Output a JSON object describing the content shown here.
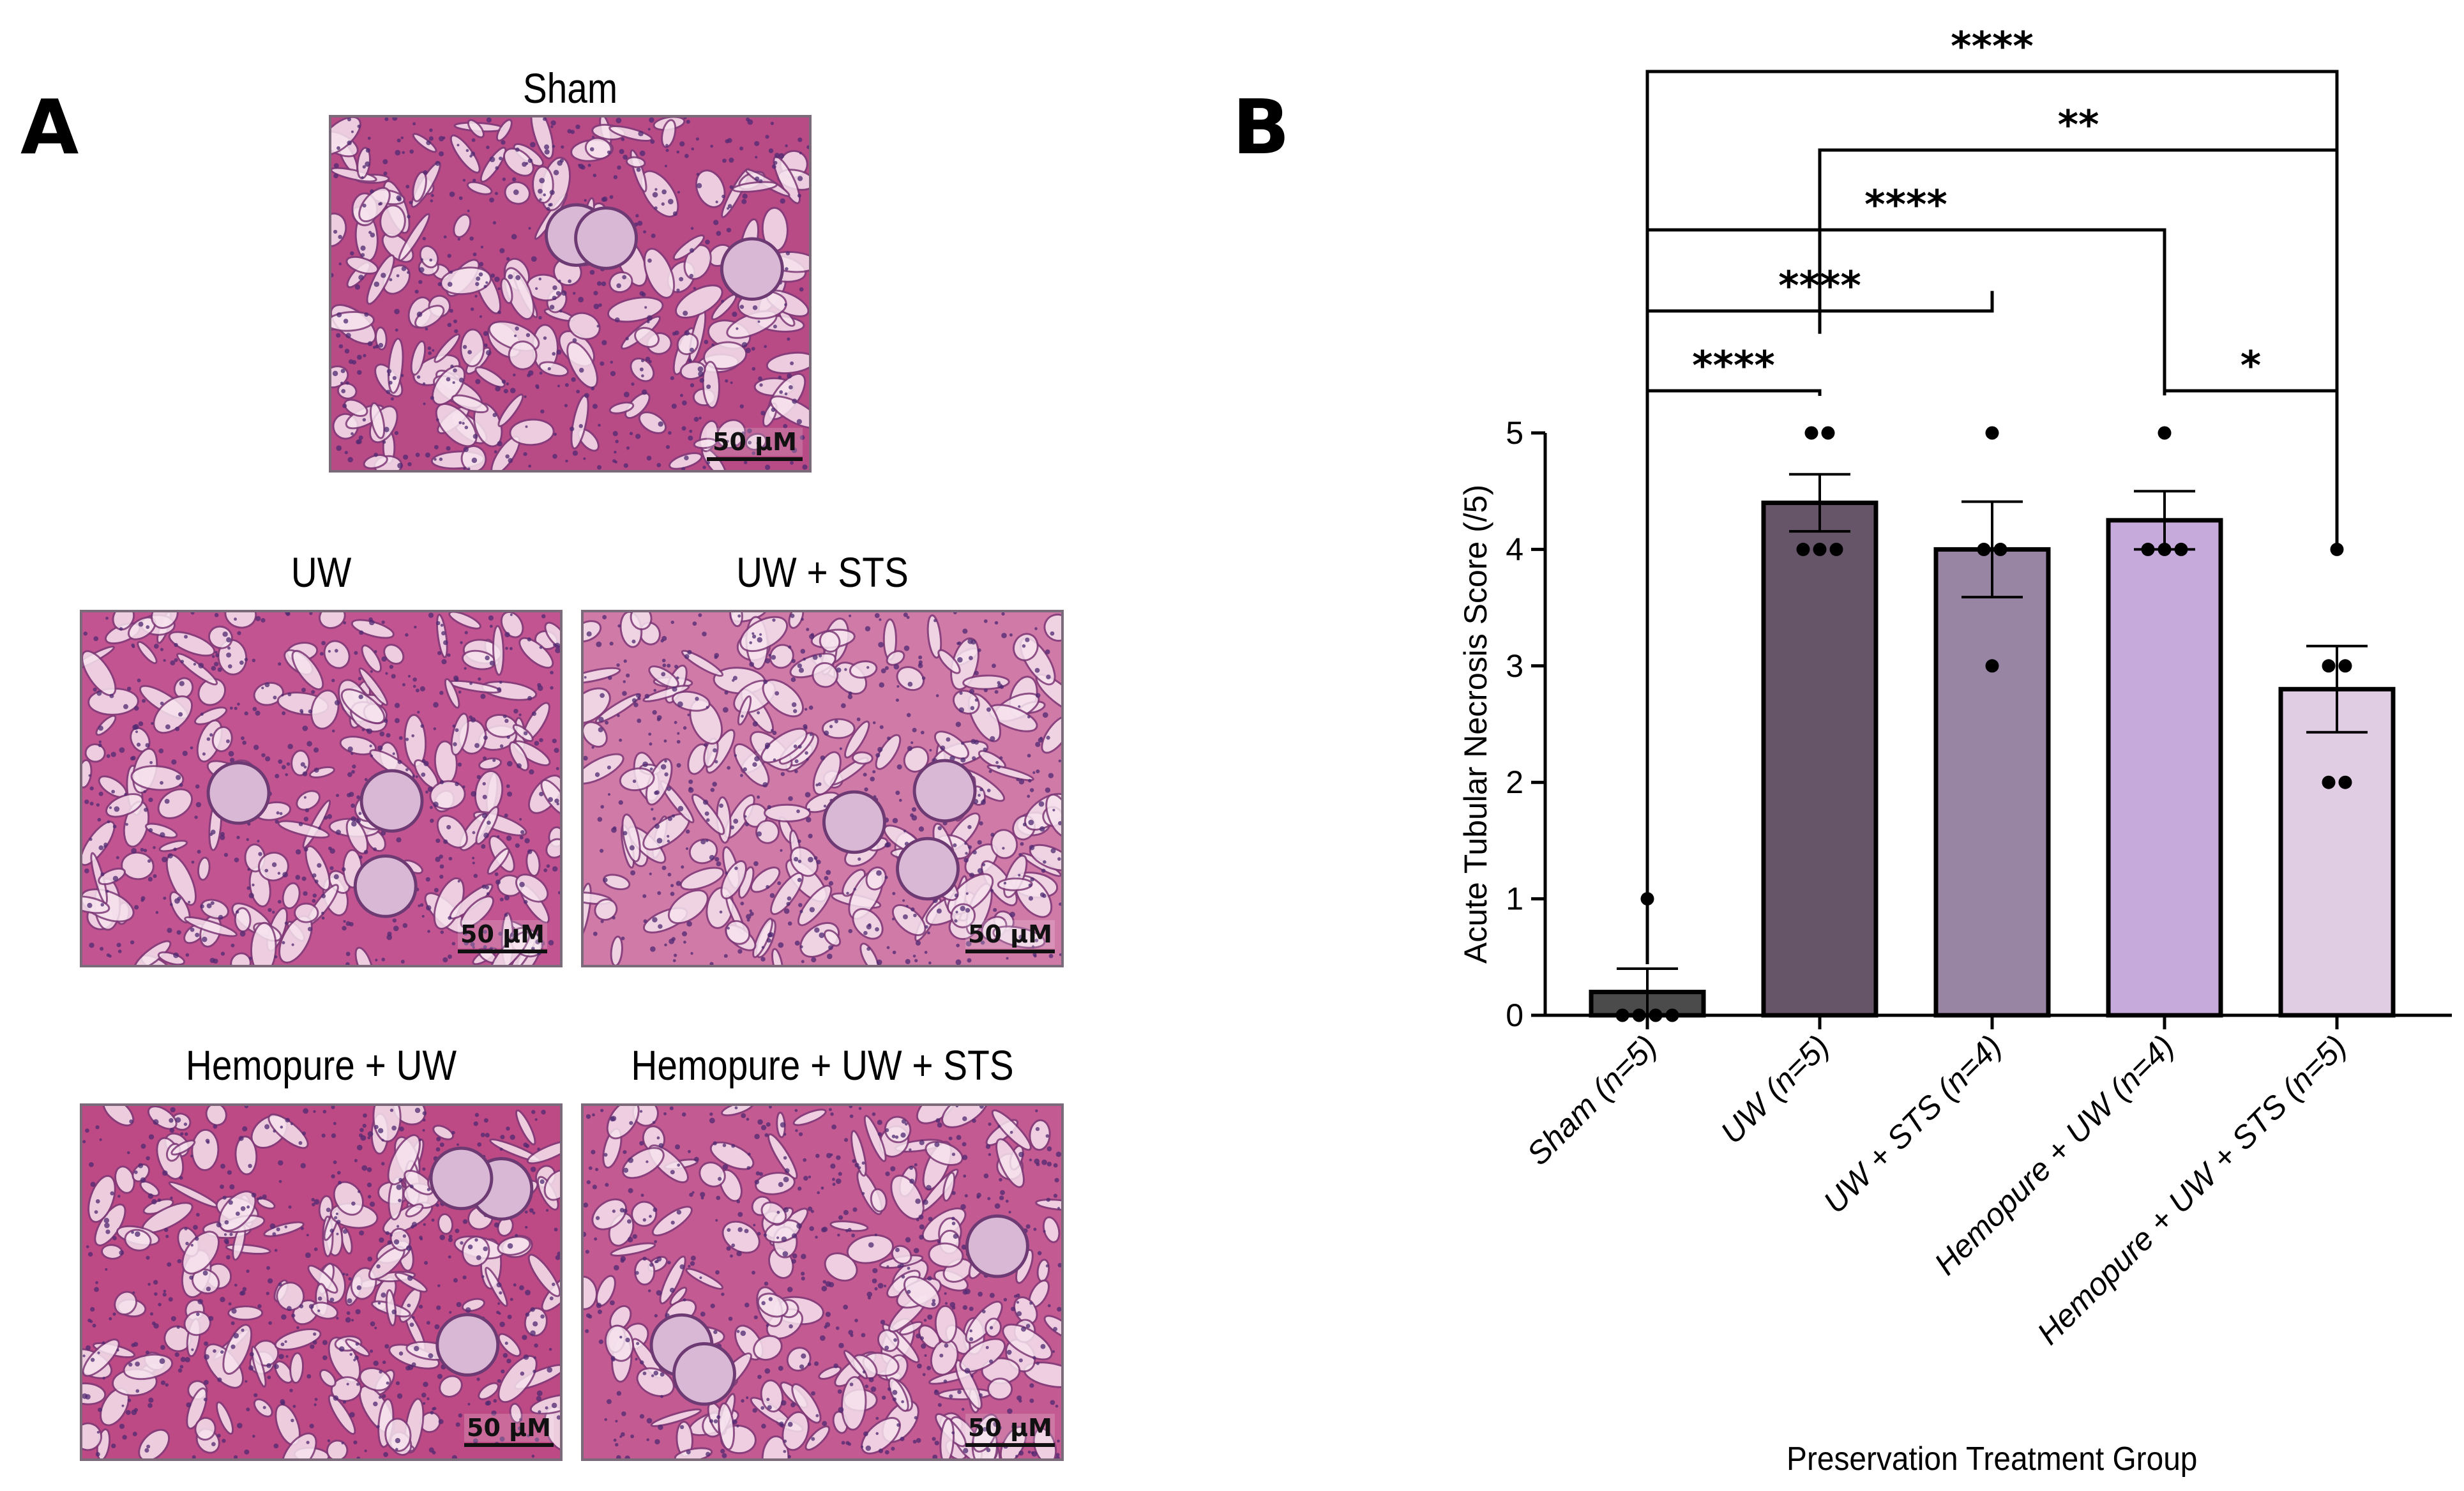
{
  "panel_a": {
    "letter": "A",
    "micrographs": [
      {
        "title": "Sham",
        "scale_label": "50 μM",
        "tone": "#b84a86"
      },
      {
        "title": "UW",
        "scale_label": "50 μM",
        "tone": "#c25591"
      },
      {
        "title": "UW + STS",
        "scale_label": "50 μM",
        "tone": "#d07aa8"
      },
      {
        "title": "Hemopure + UW",
        "scale_label": "50 μM",
        "tone": "#bd4a84"
      },
      {
        "title": "Hemopure + UW + STS",
        "scale_label": "50 μM",
        "tone": "#c35a92"
      }
    ]
  },
  "panel_b": {
    "letter": "B"
  },
  "chart_data": {
    "type": "bar",
    "title": "",
    "xlabel": "Preservation Treatment Group",
    "ylabel": "Acute Tubular Necrosis Score (/5)",
    "ylim": [
      0,
      5
    ],
    "yticks": [
      "0",
      "1",
      "2",
      "3",
      "4",
      "5"
    ],
    "categories": [
      "Sham (n=5)",
      "UW (n=5)",
      "UW + STS (n=4)",
      "Hemopure + UW (n=4)",
      "Hemopure + UW + STS (n=5)"
    ],
    "values": [
      0.2,
      4.4,
      4.0,
      4.25,
      2.8
    ],
    "sem": [
      0.2,
      0.245,
      0.41,
      0.25,
      0.37
    ],
    "colors": [
      "#4b4b4b",
      "#665468",
      "#9785a3",
      "#c7aadc",
      "#e0cde3"
    ],
    "points": [
      [
        1,
        0,
        0,
        0,
        0
      ],
      [
        5,
        5,
        4,
        4,
        4
      ],
      [
        5,
        4,
        4,
        3
      ],
      [
        5,
        4,
        4,
        4
      ],
      [
        4,
        3,
        3,
        2,
        2
      ]
    ],
    "grid": false,
    "legend": "none",
    "significance": [
      {
        "from": 0,
        "to": 4,
        "label": "****"
      },
      {
        "from": 1,
        "to": 4,
        "label": "**"
      },
      {
        "from": 0,
        "to": 3,
        "label": "****"
      },
      {
        "from": 0,
        "to": 2,
        "label": "****"
      },
      {
        "from": 0,
        "to": 1,
        "label": "****"
      },
      {
        "from": 3,
        "to": 4,
        "label": "*"
      }
    ]
  }
}
